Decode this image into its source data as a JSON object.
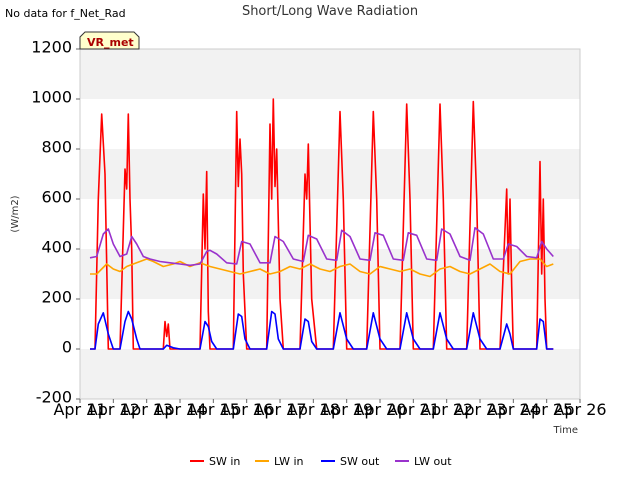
{
  "header": {
    "nodata_text": "No data for f_Net_Rad"
  },
  "badge": {
    "text": "VR_met",
    "fill": "#ffffcc",
    "stroke": "#333333",
    "text_color": "#aa0000"
  },
  "chart_data": {
    "type": "line",
    "title": "Short/Long Wave Radiation",
    "xlabel": "Time",
    "ylabel": "(W/m2)",
    "ylim": [
      -200,
      1200
    ],
    "xlim": [
      11,
      26
    ],
    "yticks": [
      -200,
      0,
      200,
      400,
      600,
      800,
      1000,
      1200
    ],
    "xticks": [
      11,
      12,
      13,
      14,
      15,
      16,
      17,
      18,
      19,
      20,
      21,
      22,
      23,
      24,
      25,
      26
    ],
    "xtick_labels": [
      "Apr 11",
      "Apr 12",
      "Apr 13",
      "Apr 14",
      "Apr 15",
      "Apr 16",
      "Apr 17",
      "Apr 18",
      "Apr 19",
      "Apr 20",
      "Apr 21",
      "Apr 22",
      "Apr 23",
      "Apr 24",
      "Apr 25",
      "Apr 26"
    ],
    "grid": "horizontal bands",
    "legend_position": "bottom",
    "series": [
      {
        "name": "SW in",
        "color": "#ff0000",
        "x": [
          11.3,
          11.45,
          11.55,
          11.65,
          11.75,
          11.85,
          12.0,
          12.2,
          12.35,
          12.4,
          12.45,
          12.5,
          12.55,
          12.6,
          12.7,
          12.8,
          13.0,
          13.5,
          13.55,
          13.6,
          13.65,
          13.7,
          13.8,
          13.9,
          14.0,
          14.4,
          14.6,
          14.7,
          14.75,
          14.8,
          14.85,
          14.9,
          14.95,
          15.1,
          15.4,
          15.6,
          15.7,
          15.75,
          15.8,
          15.85,
          15.9,
          16.0,
          16.1,
          16.4,
          16.6,
          16.7,
          16.75,
          16.8,
          16.85,
          16.9,
          17.0,
          17.1,
          17.4,
          17.6,
          17.75,
          17.8,
          17.85,
          17.95,
          18.1,
          18.4,
          18.6,
          18.8,
          18.9,
          19.0,
          19.2,
          19.4,
          19.6,
          19.8,
          19.9,
          20.0,
          20.2,
          20.4,
          20.6,
          20.8,
          20.9,
          21.0,
          21.2,
          21.4,
          21.6,
          21.8,
          21.9,
          22.0,
          22.2,
          22.4,
          22.6,
          22.8,
          22.9,
          23.0,
          23.2,
          23.4,
          23.6,
          23.8,
          23.85,
          23.9,
          23.95,
          24.0,
          24.2,
          24.4,
          24.7,
          24.8,
          24.85,
          24.9,
          24.95,
          25.0,
          25.2
        ],
        "y": [
          0,
          0,
          600,
          940,
          700,
          0,
          0,
          0,
          720,
          640,
          940,
          600,
          400,
          0,
          0,
          0,
          0,
          0,
          110,
          50,
          100,
          0,
          0,
          0,
          0,
          0,
          0,
          620,
          400,
          710,
          150,
          0,
          0,
          0,
          0,
          0,
          950,
          650,
          840,
          700,
          300,
          0,
          0,
          0,
          0,
          900,
          600,
          1000,
          650,
          800,
          200,
          0,
          0,
          0,
          700,
          600,
          820,
          200,
          0,
          0,
          0,
          950,
          600,
          0,
          0,
          0,
          0,
          950,
          600,
          0,
          0,
          0,
          0,
          980,
          600,
          0,
          0,
          0,
          0,
          980,
          600,
          0,
          0,
          0,
          0,
          990,
          600,
          0,
          0,
          0,
          0,
          640,
          300,
          600,
          250,
          0,
          0,
          0,
          0,
          750,
          300,
          600,
          200,
          0,
          0
        ]
      },
      {
        "name": "LW in",
        "color": "#ffa500",
        "x": [
          11.3,
          11.5,
          11.8,
          12.0,
          12.2,
          12.4,
          12.6,
          12.8,
          13.0,
          13.2,
          13.5,
          13.8,
          14.0,
          14.3,
          14.6,
          14.9,
          15.2,
          15.5,
          15.8,
          16.1,
          16.4,
          16.7,
          17.0,
          17.3,
          17.6,
          17.9,
          18.2,
          18.5,
          18.8,
          19.1,
          19.4,
          19.7,
          20.0,
          20.3,
          20.6,
          20.9,
          21.2,
          21.5,
          21.8,
          22.1,
          22.4,
          22.7,
          23.0,
          23.3,
          23.6,
          23.9,
          24.2,
          24.5,
          24.8,
          25.0,
          25.2
        ],
        "y": [
          300,
          300,
          340,
          320,
          310,
          330,
          340,
          350,
          360,
          350,
          330,
          340,
          350,
          330,
          345,
          330,
          320,
          310,
          300,
          310,
          320,
          300,
          310,
          330,
          320,
          340,
          320,
          310,
          330,
          340,
          310,
          300,
          330,
          320,
          310,
          320,
          300,
          290,
          320,
          330,
          310,
          300,
          320,
          340,
          310,
          300,
          350,
          360,
          360,
          330,
          340
        ]
      },
      {
        "name": "SW out",
        "color": "#0000ff",
        "x": [
          11.3,
          11.45,
          11.55,
          11.7,
          11.85,
          12.0,
          12.2,
          12.35,
          12.45,
          12.55,
          12.7,
          12.8,
          13.0,
          13.5,
          13.6,
          13.7,
          13.8,
          14.0,
          14.4,
          14.6,
          14.75,
          14.85,
          14.95,
          15.1,
          15.4,
          15.6,
          15.75,
          15.85,
          15.95,
          16.1,
          16.4,
          16.6,
          16.75,
          16.85,
          16.95,
          17.1,
          17.4,
          17.6,
          17.75,
          17.85,
          17.95,
          18.1,
          18.4,
          18.6,
          18.8,
          19.0,
          19.2,
          19.4,
          19.6,
          19.8,
          20.0,
          20.2,
          20.4,
          20.6,
          20.8,
          21.0,
          21.2,
          21.4,
          21.6,
          21.8,
          22.0,
          22.2,
          22.4,
          22.6,
          22.8,
          23.0,
          23.2,
          23.4,
          23.6,
          23.8,
          23.9,
          24.0,
          24.2,
          24.4,
          24.7,
          24.8,
          24.9,
          25.0,
          25.2
        ],
        "y": [
          0,
          0,
          100,
          145,
          60,
          0,
          0,
          110,
          150,
          120,
          40,
          0,
          0,
          0,
          15,
          10,
          5,
          0,
          0,
          0,
          110,
          90,
          30,
          0,
          0,
          0,
          140,
          130,
          40,
          0,
          0,
          0,
          150,
          140,
          40,
          0,
          0,
          0,
          120,
          110,
          30,
          0,
          0,
          0,
          145,
          40,
          0,
          0,
          0,
          145,
          40,
          0,
          0,
          0,
          145,
          40,
          0,
          0,
          0,
          145,
          40,
          0,
          0,
          0,
          145,
          40,
          0,
          0,
          0,
          100,
          60,
          0,
          0,
          0,
          0,
          120,
          110,
          0,
          0
        ]
      },
      {
        "name": "LW out",
        "color": "#9932cc",
        "x": [
          11.3,
          11.5,
          11.7,
          11.85,
          12.0,
          12.2,
          12.4,
          12.55,
          12.7,
          12.9,
          13.1,
          13.4,
          13.7,
          14.0,
          14.3,
          14.6,
          14.8,
          14.9,
          15.1,
          15.4,
          15.7,
          15.85,
          16.1,
          16.4,
          16.7,
          16.85,
          17.1,
          17.4,
          17.7,
          17.85,
          18.1,
          18.4,
          18.7,
          18.85,
          19.1,
          19.4,
          19.7,
          19.85,
          20.1,
          20.4,
          20.7,
          20.85,
          21.1,
          21.4,
          21.7,
          21.85,
          22.1,
          22.4,
          22.7,
          22.85,
          23.1,
          23.4,
          23.7,
          23.85,
          24.1,
          24.4,
          24.7,
          24.85,
          25.0,
          25.2
        ],
        "y": [
          365,
          370,
          460,
          480,
          420,
          370,
          380,
          450,
          420,
          370,
          360,
          350,
          345,
          340,
          335,
          340,
          390,
          395,
          380,
          345,
          340,
          430,
          420,
          345,
          345,
          450,
          430,
          360,
          350,
          455,
          440,
          360,
          355,
          475,
          450,
          360,
          355,
          465,
          455,
          360,
          355,
          465,
          455,
          360,
          355,
          480,
          460,
          370,
          355,
          485,
          460,
          360,
          360,
          420,
          410,
          370,
          365,
          430,
          400,
          370
        ]
      }
    ]
  }
}
